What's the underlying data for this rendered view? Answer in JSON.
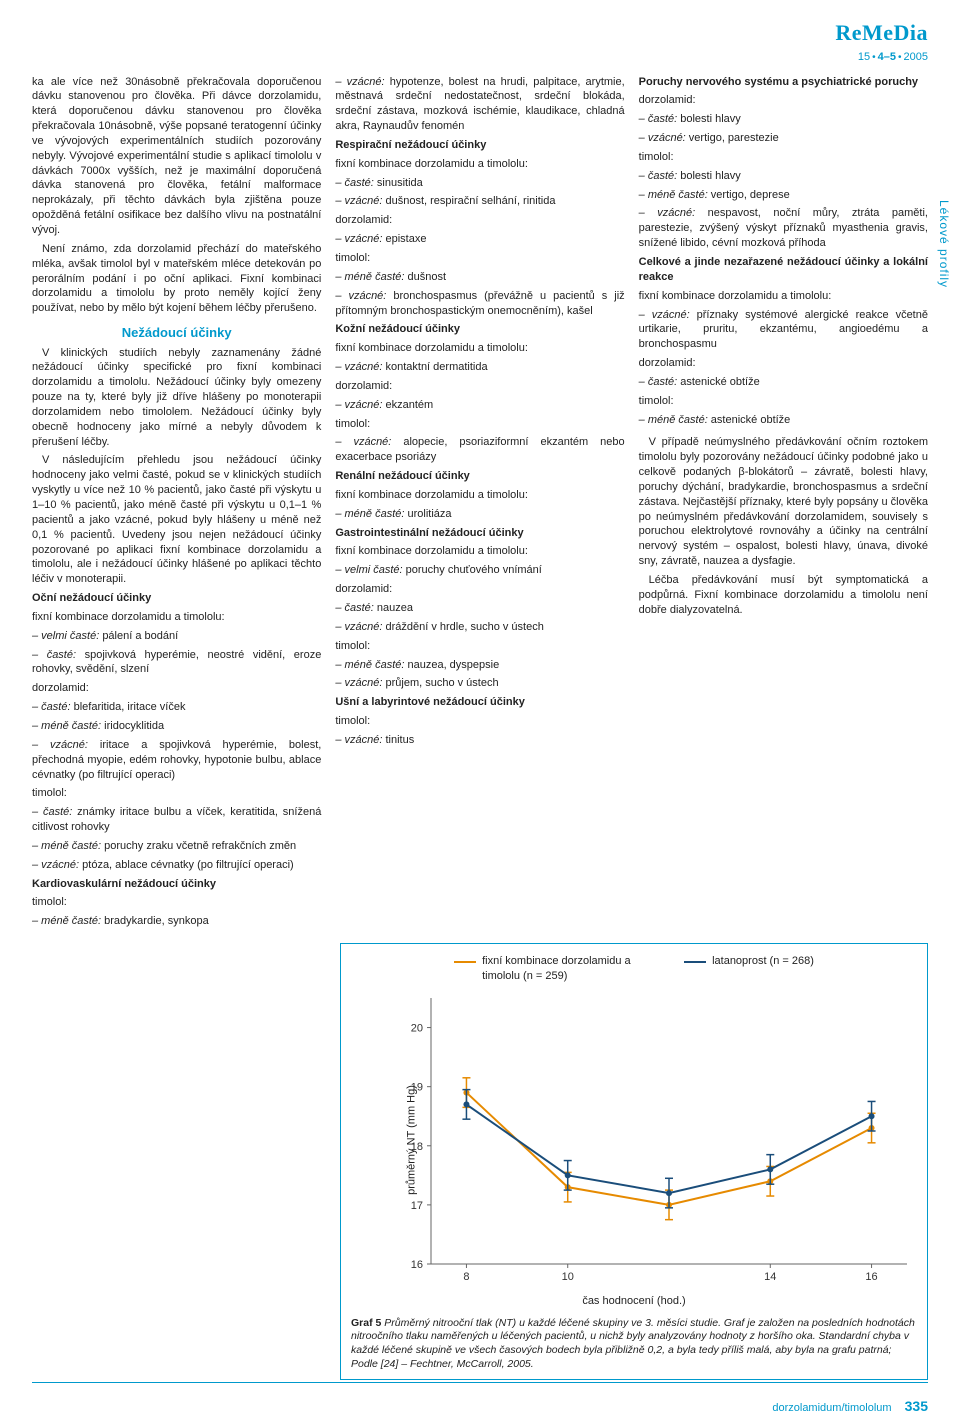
{
  "header": {
    "brand": "ReMeDia",
    "issue_prefix": "15",
    "issue_mid": "4–5",
    "issue_year": "2005"
  },
  "sidelabel": "Lékové profily",
  "col1": {
    "p1": "ka ale více než 30násobně překračovala doporučenou dávku stanovenou pro člověka. Při dávce dorzolamidu, která doporučenou dávku stanovenou pro člověka překračovala 10násobně, výše popsané teratogenní účinky ve vývojových experimentálních studiích pozorovány nebyly. Vývojové experimentální studie s aplikací timololu v dávkách 7000x vyšších, než je maximální doporučená dávka stanovená pro člověka, fetální malformace neprokázaly, při těchto dávkách byla zjištěna pouze opožděná fetální osifikace bez dalšího vlivu na postnatální vývoj.",
    "p2": "Není známo, zda dorzolamid přechází do mateřského mléka, avšak timolol byl v mateřském mléce detekován po perorálním podání i po oční aplikaci. Fixní kombinaci dorzolamidu a timololu by proto neměly kojící ženy používat, nebo by mělo být kojení během léčby přerušeno.",
    "h1": "Nežádoucí účinky",
    "p3": "V klinických studiích nebyly zaznamenány žádné nežádoucí účinky specifické pro fixní kombinaci dorzolamidu a timololu. Nežádoucí účinky byly omezeny pouze na ty, které byly již dříve hlášeny po monoterapii dorzolamidem nebo timololem. Nežádoucí účinky byly obecně hodnoceny jako mírné a nebyly důvodem k přerušení léčby.",
    "p4": "V následujícím přehledu jsou nežádoucí účinky hodnoceny jako velmi časté, pokud se v klinických studiích vyskytly u více než 10 % pacientů, jako časté při výskytu u 1–10 % pacientů, jako méně časté při výskytu u 0,1–1 % pacientů a jako vzácné, pokud byly hlášeny u méně než 0,1 % pacientů. Uvedeny jsou nejen nežádoucí účinky pozorované po aplikaci fixní kombinace dorzolamidu a timololu, ale i nežádoucí účinky hlášené po aplikaci těchto léčiv v monoterapii.",
    "ocni_h": "Oční nežádoucí účinky",
    "ocni_fix": "fixní kombinace dorzolamidu a timololu:",
    "ocni_fix_a": "– velmi časté: pálení a bodání",
    "ocni_fix_b": "– časté: spojivková hyperémie, neostré vidění, eroze rohovky, svědění, slzení",
    "ocni_dor": "dorzolamid:",
    "ocni_dor_a": "– časté: blefaritida, iritace víček",
    "ocni_dor_b": "– méně časté: iridocyklitida",
    "ocni_dor_c": "– vzácné: iritace a spojivková hyperémie, bolest, přechodná myopie, edém rohovky, hypotonie bulbu, ablace cévnatky (po filtrující operaci)",
    "ocni_tim": "timolol:",
    "ocni_tim_a": "– časté: známky iritace bulbu a víček, keratitida, snížená citlivost rohovky",
    "ocni_tim_b": "– méně časté: poruchy zraku včetně refrakčních změn",
    "ocni_tim_c": "– vzácné: ptóza, ablace cévnatky (po filtrující operaci)",
    "kardio_h": "Kardiovaskulární nežádoucí účinky",
    "kardio_tim": "timolol:",
    "kardio_tim_a": "– méně časté: bradykardie, synkopa"
  },
  "col2": {
    "p1": "– vzácné: hypotenze, bolest na hrudi, palpitace, arytmie, městnavá srdeční nedostatečnost, srdeční blokáda, srdeční zástava, mozková ischémie, klaudikace, chladná akra, Raynaudův fenomén",
    "resp_h": "Respirační nežádoucí účinky",
    "resp_fix": "fixní kombinace dorzolamidu a timololu:",
    "resp_fix_a": "– časté: sinusitida",
    "resp_fix_b": "– vzácné: dušnost, respirační selhání, rinitida",
    "resp_dor": "dorzolamid:",
    "resp_dor_a": "– vzácné: epistaxe",
    "resp_tim": "timolol:",
    "resp_tim_a": "– méně časté: dušnost",
    "resp_tim_b": "– vzácné: bronchospasmus (převážně u pacientů s již přítomným bronchospastickým onemocněním), kašel",
    "kozni_h": "Kožní nežádoucí účinky",
    "kozni_fix": "fixní kombinace dorzolamidu a timololu:",
    "kozni_fix_a": "– vzácné: kontaktní dermatitida",
    "kozni_dor": "dorzolamid:",
    "kozni_dor_a": "– vzácné: ekzantém",
    "kozni_tim": "timolol:",
    "kozni_tim_a": "– vzácné: alopecie, psoriaziformní ekzantém nebo exacerbace psoriázy",
    "renal_h": "Renální nežádoucí účinky",
    "renal_fix": "fixní kombinace dorzolamidu a timololu:",
    "renal_fix_a": "– méně časté: urolitiáza",
    "gi_h": "Gastrointestinální nežádoucí účinky",
    "gi_fix": "fixní kombinace dorzolamidu a timololu:",
    "gi_fix_a": "– velmi časté: poruchy chuťového vnímání",
    "gi_dor": "dorzolamid:",
    "gi_dor_a": "– časté: nauzea",
    "gi_dor_b": "– vzácné: dráždění v hrdle, sucho v ústech",
    "gi_tim": "timolol:",
    "gi_tim_a": "– méně časté: nauzea, dyspepsie",
    "gi_tim_b": "– vzácné: průjem, sucho v ústech",
    "usni_h": "Ušní a labyrintové nežádoucí účinky",
    "usni_tim": "timolol:",
    "usni_tim_a": "– vzácné: tinitus"
  },
  "col3": {
    "ns_h": "Poruchy nervového systému a psychiatrické poruchy",
    "ns_dor": "dorzolamid:",
    "ns_dor_a": "– časté: bolesti hlavy",
    "ns_dor_b": "– vzácné: vertigo, parestezie",
    "ns_tim": "timolol:",
    "ns_tim_a": "– časté: bolesti hlavy",
    "ns_tim_b": "– méně časté: vertigo, deprese",
    "ns_tim_c": "– vzácné: nespavost, noční můry, ztráta paměti, parestezie, zvýšený výskyt příznaků myasthenia gravis, snížené libido, cévní mozková příhoda",
    "celk_h": "Celkové a jinde nezařazené nežádoucí účinky a lokální reakce",
    "celk_fix": "fixní kombinace dorzolamidu a timololu:",
    "celk_fix_a": "– vzácné: příznaky systémové alergické reakce včetně urtikarie, pruritu, ekzantému, angioedému a bronchospasmu",
    "celk_dor": "dorzolamid:",
    "celk_dor_a": "– časté: astenické obtíže",
    "celk_tim": "timolol:",
    "celk_tim_a": "– méně časté: astenické obtíže",
    "p_over": "V případě neúmyslného předávkování očním roztokem timololu byly pozorovány nežádoucí účinky podobné jako u celkově podaných β-blokátorů – závratě, bolesti hlavy, poruchy dýchání, bradykardie, bronchospasmus a srdeční zástava. Nejčastější příznaky, které byly popsány u člověka po neúmyslném předávkování dorzolamidem, souvisely s poruchou elektrolytové rovnováhy a účinky na centrální nervový systém – ospalost, bolesti hlavy, únava, divoké sny, závratě, nauzea a dysfagie.",
    "p_treat": "Léčba předávkování musí být symptomatická a podpůrná. Fixní kombinace dorzolamidu a timololu není dobře dialyzovatelná."
  },
  "chart": {
    "type": "line",
    "ylabel": "průměrný NT (mm Hg)",
    "xlabel": "čas hodnocení (hod.)",
    "yticks": [
      16,
      17,
      18,
      19,
      20
    ],
    "xticks": [
      8,
      10,
      14,
      16
    ],
    "ylim": [
      16,
      20.5
    ],
    "xlim": [
      7.3,
      16.7
    ],
    "legend": [
      {
        "label": "fixní kombinace dorzolamidu a timololu (n = 259)",
        "color": "#e68a00"
      },
      {
        "label": "latanoprost (n = 268)",
        "color": "#1a4d7a"
      }
    ],
    "series": [
      {
        "color": "#e68a00",
        "x": [
          8,
          10,
          12,
          14,
          16
        ],
        "y": [
          18.9,
          17.3,
          17.0,
          17.4,
          18.3
        ],
        "err": [
          0.25,
          0.25,
          0.25,
          0.25,
          0.25
        ]
      },
      {
        "color": "#1a4d7a",
        "x": [
          8,
          10,
          12,
          14,
          16
        ],
        "y": [
          18.7,
          17.5,
          17.2,
          17.6,
          18.5
        ],
        "err": [
          0.25,
          0.25,
          0.25,
          0.25,
          0.25
        ]
      }
    ],
    "background": "#ffffff",
    "axis_color": "#666666",
    "tick_fontsize": 11,
    "label_fontsize": 11,
    "caption_lead": "Graf 5",
    "caption": "Průměrný nitrooční tlak (NT) u každé léčené skupiny ve 3. měsíci studie. Graf je založen na posledních hodnotách nitroočního tlaku naměřených u léčených pacientů, u nichž byly analyzovány hodnoty z horšího oka. Standardní chyba v každé léčené skupině ve všech časových bodech byla přibližně 0,2, a byla tedy příliš malá, aby byla na grafu patrná; Podle [24] – Fechtner, McCarroll, 2005."
  },
  "footer": {
    "slug": "dorzolamidum/timololum",
    "page": "335"
  }
}
